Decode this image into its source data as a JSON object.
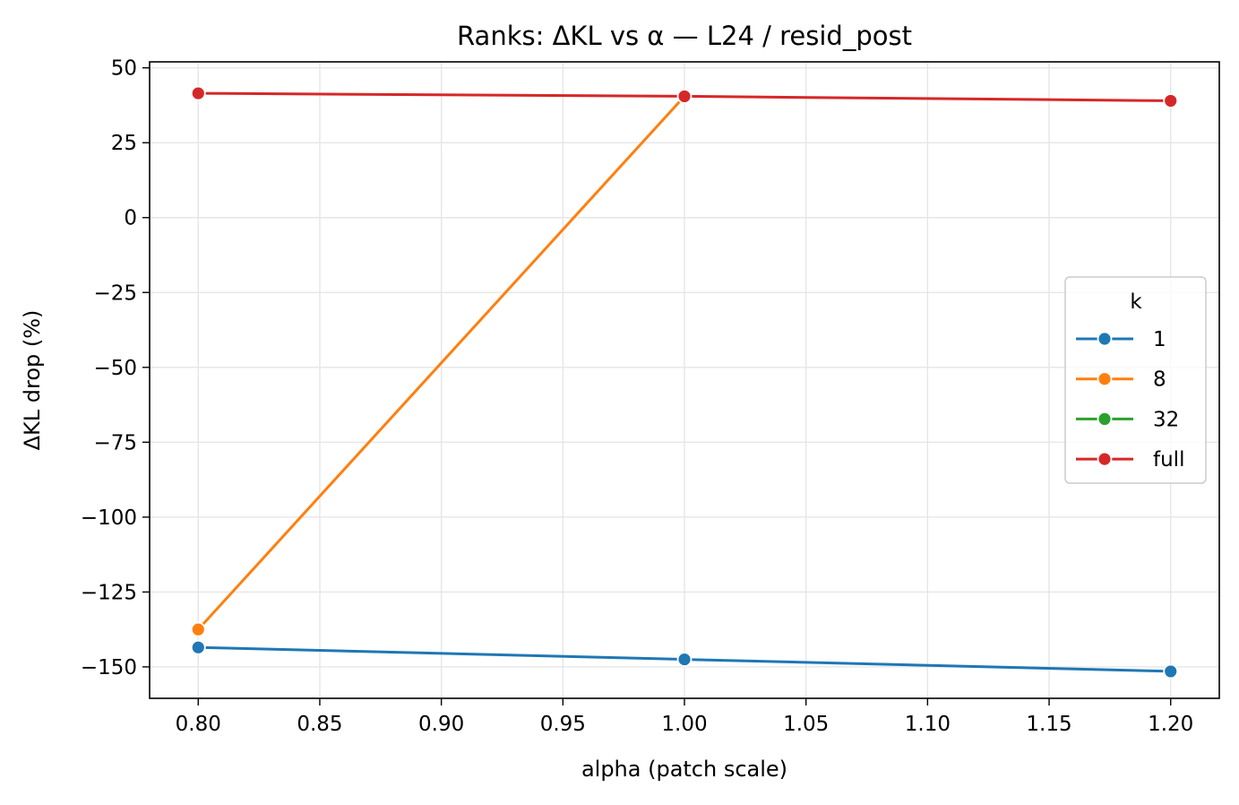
{
  "chart_data": {
    "type": "line",
    "title": "Ranks: ΔKL vs α — L24 / resid_post",
    "xlabel": "alpha (patch scale)",
    "ylabel": "ΔKL drop (%)",
    "xlim": [
      0.78,
      1.22
    ],
    "ylim": [
      -160.5,
      52
    ],
    "x_ticks": [
      0.8,
      0.85,
      0.9,
      0.95,
      1.0,
      1.05,
      1.1,
      1.15,
      1.2
    ],
    "x_tick_labels": [
      "0.80",
      "0.85",
      "0.90",
      "0.95",
      "1.00",
      "1.05",
      "1.10",
      "1.15",
      "1.20"
    ],
    "y_ticks": [
      50,
      25,
      0,
      -25,
      -50,
      -75,
      -100,
      -125,
      -150
    ],
    "y_tick_labels": [
      "50",
      "25",
      "0",
      "−25",
      "−50",
      "−75",
      "−100",
      "−125",
      "−150"
    ],
    "grid": true,
    "legend_title": "k",
    "legend_position": "center-right",
    "series": [
      {
        "name": "1",
        "color": "#1f77b4",
        "x": [
          0.8,
          1.0,
          1.2
        ],
        "values": [
          -143.5,
          -147.5,
          -151.5
        ]
      },
      {
        "name": "8",
        "color": "#ff7f0e",
        "x": [
          0.8,
          1.0
        ],
        "values": [
          -137.5,
          40.5
        ]
      },
      {
        "name": "32",
        "color": "#2ca02c",
        "x": [],
        "values": []
      },
      {
        "name": "full",
        "color": "#d62728",
        "x": [
          0.8,
          1.0,
          1.2
        ],
        "values": [
          41.5,
          40.5,
          39.0
        ]
      }
    ]
  }
}
